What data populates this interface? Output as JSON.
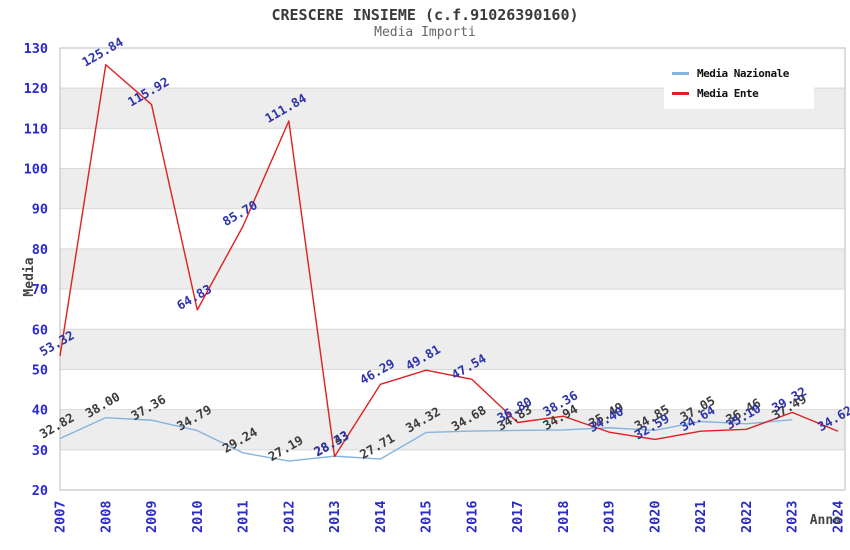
{
  "chart_data": {
    "type": "line",
    "title": "CRESCERE INSIEME (c.f.91026390160)",
    "subtitle": "Media Importi",
    "xlabel": "Anno",
    "ylabel": "Media",
    "ylim": [
      20,
      130
    ],
    "y_ticks": [
      20,
      30,
      40,
      50,
      60,
      70,
      80,
      90,
      100,
      110,
      120,
      130
    ],
    "x": [
      "2007",
      "2008",
      "2009",
      "2010",
      "2011",
      "2012",
      "2013",
      "2014",
      "2015",
      "2016",
      "2017",
      "2018",
      "2019",
      "2020",
      "2021",
      "2022",
      "2023",
      "2024"
    ],
    "gray_band_starts": [
      30,
      50,
      70,
      90,
      110
    ],
    "grid": true,
    "legend_position": "top-right",
    "series": [
      {
        "name": "Media Nazionale",
        "color": "#85b4e0",
        "label_color": "#3c3c3c",
        "values": [
          32.82,
          38.0,
          37.36,
          34.79,
          29.24,
          27.19,
          28.43,
          27.71,
          34.32,
          34.68,
          34.83,
          34.94,
          35.49,
          34.85,
          37.05,
          36.46,
          37.49,
          null
        ],
        "labels": [
          "32.82",
          "38.00",
          "37.36",
          "34.79",
          "29.24",
          "27.19",
          "28.43",
          "27.71",
          "34.32",
          "34.68",
          "34.83",
          "34.94",
          "35.49",
          "34.85",
          "37.05",
          "36.46",
          "37.49",
          ""
        ]
      },
      {
        "name": "Media Ente",
        "color": "#e02020",
        "label_color": "#2d33ab",
        "values": [
          53.32,
          125.84,
          115.92,
          64.83,
          85.7,
          111.84,
          28.33,
          46.29,
          49.81,
          47.54,
          36.8,
          38.36,
          34.4,
          32.59,
          34.64,
          35.1,
          39.32,
          34.62
        ],
        "labels": [
          "53.32",
          "125.84",
          "115.92",
          "64.83",
          "85.70",
          "111.84",
          "28.33",
          "46.29",
          "49.81",
          "47.54",
          "36.80",
          "38.36",
          "34.40",
          "32.59",
          "34.64",
          "35.10",
          "39.32",
          "34.62"
        ]
      }
    ]
  },
  "colors": {
    "tick_text": "#2a2ace",
    "axis_title_text": "#444444",
    "band_gray": "#ededed",
    "gridline": "#d9d9d9",
    "plot_border": "#bbbbbb",
    "title_text": "#3a3a3a",
    "subtitle_text": "#666666"
  }
}
